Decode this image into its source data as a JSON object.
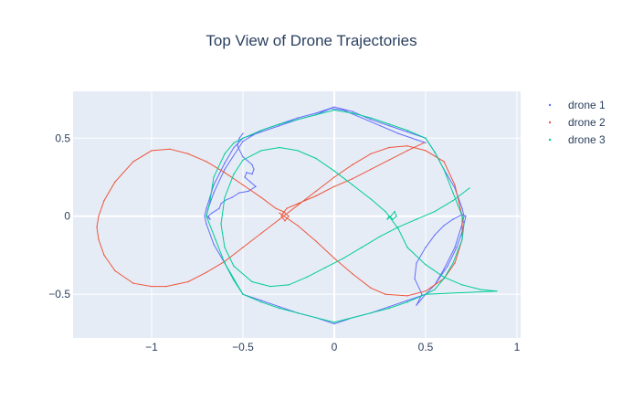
{
  "chart_data": {
    "type": "scatter",
    "title": "Top View of Drone Trajectories",
    "xlabel": "",
    "ylabel": "",
    "xlim": [
      -1.43,
      1.02
    ],
    "ylim": [
      -0.78,
      0.8
    ],
    "x_ticks": [
      -1,
      -0.5,
      0,
      0.5,
      1
    ],
    "x_tick_labels": [
      "−1",
      "−0.5",
      "0",
      "0.5",
      "1"
    ],
    "y_ticks": [
      -0.5,
      0,
      0.5
    ],
    "y_tick_labels": [
      "−0.5",
      "0",
      "0.5"
    ],
    "grid": true,
    "legend_position": "top-right",
    "series": [
      {
        "name": "drone 1",
        "color": "#636efa",
        "mode": "lines+markers",
        "x": [
          -0.5,
          -0.52,
          -0.53,
          -0.5,
          -0.45,
          -0.44,
          -0.45,
          -0.48,
          -0.49,
          -0.46,
          -0.43,
          -0.47,
          -0.52,
          -0.56,
          -0.6,
          -0.62,
          -0.63,
          -0.67,
          -0.69,
          -0.68,
          -0.7,
          -0.69,
          -0.66,
          -0.6,
          -0.5,
          -0.4,
          -0.3,
          -0.2,
          -0.1,
          0,
          0.1,
          0.2,
          0.3,
          0.4,
          0.5,
          0.55,
          0.6,
          0.66,
          0.7,
          0.71,
          0.7,
          0.66,
          0.6,
          0.55,
          0.5,
          0.45,
          0.48,
          0.44,
          0.45,
          0.5,
          0.55,
          0.6,
          0.65,
          0.7,
          0.72,
          0.7,
          0.67,
          0.62,
          0.55,
          0.5,
          0.4,
          0.3,
          0.2,
          0.1,
          0,
          -0.1,
          -0.2,
          -0.3,
          -0.4,
          -0.5,
          -0.55,
          -0.6,
          -0.66,
          -0.7,
          -0.71,
          -0.7,
          -0.66,
          -0.6,
          -0.55,
          -0.5,
          -0.4,
          -0.3,
          -0.2,
          -0.1,
          -0.02,
          0.05,
          0.15,
          0.25,
          0.35,
          0.45,
          0.5
        ],
        "y": [
          0.53,
          0.5,
          0.45,
          0.38,
          0.33,
          0.3,
          0.27,
          0.28,
          0.25,
          0.22,
          0.19,
          0.16,
          0.15,
          0.12,
          0.1,
          0.08,
          0.05,
          0.02,
          0.0,
          -0.02,
          0.0,
          0.05,
          0.15,
          0.3,
          0.48,
          0.55,
          0.59,
          0.63,
          0.66,
          0.7,
          0.67,
          0.62,
          0.58,
          0.54,
          0.5,
          0.41,
          0.3,
          0.18,
          0.05,
          0.0,
          -0.05,
          -0.2,
          -0.34,
          -0.44,
          -0.5,
          -0.57,
          -0.5,
          -0.4,
          -0.3,
          -0.2,
          -0.12,
          -0.06,
          -0.02,
          0.01,
          0.0,
          -0.1,
          -0.2,
          -0.32,
          -0.44,
          -0.5,
          -0.54,
          -0.58,
          -0.62,
          -0.65,
          -0.69,
          -0.65,
          -0.62,
          -0.58,
          -0.54,
          -0.5,
          -0.41,
          -0.3,
          -0.18,
          -0.05,
          0.0,
          0.05,
          0.2,
          0.34,
          0.44,
          0.5,
          0.54,
          0.58,
          0.62,
          0.65,
          0.69,
          0.68,
          0.63,
          0.58,
          0.53,
          0.49,
          0.47
        ]
      },
      {
        "name": "drone 2",
        "color": "#ef553b",
        "mode": "lines+markers",
        "x": [
          0.49,
          0.4,
          0.3,
          0.2,
          0.1,
          0,
          -0.1,
          -0.2,
          -0.26,
          -0.28,
          -0.29,
          -0.27,
          -0.25,
          -0.28,
          -0.32,
          -0.4,
          -0.5,
          -0.6,
          -0.7,
          -0.8,
          -0.9,
          -1.0,
          -1.1,
          -1.2,
          -1.26,
          -1.29,
          -1.3,
          -1.29,
          -1.26,
          -1.2,
          -1.1,
          -1.0,
          -0.92,
          -0.8,
          -0.7,
          -0.6,
          -0.5,
          -0.4,
          -0.3,
          -0.2,
          -0.1,
          0.0,
          0.1,
          0.2,
          0.3,
          0.4,
          0.5,
          0.6,
          0.66,
          0.7,
          0.7,
          0.66,
          0.6,
          0.5,
          0.4,
          0.28,
          0.2,
          0.1,
          0.0,
          -0.1,
          -0.2,
          -0.3
        ],
        "y": [
          0.47,
          0.42,
          0.36,
          0.3,
          0.24,
          0.19,
          0.13,
          0.08,
          0.05,
          0.02,
          0.0,
          -0.03,
          0.0,
          0.03,
          0.05,
          0.12,
          0.2,
          0.28,
          0.35,
          0.4,
          0.43,
          0.42,
          0.35,
          0.22,
          0.1,
          0.0,
          -0.07,
          -0.15,
          -0.25,
          -0.35,
          -0.43,
          -0.45,
          -0.45,
          -0.42,
          -0.36,
          -0.29,
          -0.2,
          -0.11,
          -0.02,
          0.07,
          0.16,
          0.25,
          0.33,
          0.4,
          0.44,
          0.45,
          0.42,
          0.35,
          0.2,
          0.0,
          -0.15,
          -0.3,
          -0.4,
          -0.48,
          -0.51,
          -0.5,
          -0.46,
          -0.37,
          -0.27,
          -0.16,
          -0.06,
          0.02
        ]
      },
      {
        "name": "drone 3",
        "color": "#00cc96",
        "mode": "lines+markers",
        "x": [
          0.74,
          0.65,
          0.55,
          0.45,
          0.35,
          0.25,
          0.15,
          0.05,
          -0.05,
          -0.15,
          -0.25,
          -0.35,
          -0.45,
          -0.55,
          -0.6,
          -0.62,
          -0.6,
          -0.55,
          -0.5,
          -0.4,
          -0.3,
          -0.2,
          -0.1,
          0.0,
          0.1,
          0.2,
          0.28,
          0.3,
          0.29,
          0.31,
          0.33,
          0.34,
          0.32,
          0.3,
          0.35,
          0.4,
          0.5,
          0.6,
          0.7,
          0.8,
          0.89,
          0.5,
          0.4,
          0.3,
          0.2,
          0.0,
          -0.1,
          -0.2,
          -0.3,
          -0.4,
          -0.5,
          -0.55,
          -0.6,
          -0.65,
          -0.7,
          -0.68,
          -0.66,
          -0.6,
          -0.55,
          -0.5,
          -0.4,
          -0.3,
          -0.2,
          -0.1,
          0.0,
          0.1,
          0.2,
          0.3,
          0.4,
          0.5,
          0.55,
          0.6,
          0.65,
          0.7,
          0.71,
          0.7,
          0.65,
          0.6,
          0.55,
          0.5,
          0.4,
          0.3,
          0.2,
          0.1,
          0.0,
          -0.1,
          -0.2,
          -0.3,
          -0.4,
          -0.5,
          -0.6,
          -0.7
        ],
        "y": [
          0.18,
          0.1,
          0.03,
          -0.02,
          -0.07,
          -0.13,
          -0.2,
          -0.27,
          -0.33,
          -0.39,
          -0.44,
          -0.45,
          -0.42,
          -0.32,
          -0.2,
          -0.05,
          0.12,
          0.27,
          0.36,
          0.42,
          0.44,
          0.42,
          0.37,
          0.29,
          0.2,
          0.11,
          0.03,
          0.0,
          -0.02,
          0.0,
          0.03,
          0.0,
          -0.02,
          0.0,
          -0.08,
          -0.2,
          -0.31,
          -0.39,
          -0.44,
          -0.47,
          -0.48,
          -0.5,
          -0.55,
          -0.59,
          -0.62,
          -0.68,
          -0.65,
          -0.62,
          -0.59,
          -0.55,
          -0.5,
          -0.41,
          -0.3,
          -0.15,
          0.0,
          0.1,
          0.25,
          0.4,
          0.47,
          0.5,
          0.55,
          0.59,
          0.62,
          0.65,
          0.68,
          0.66,
          0.63,
          0.59,
          0.55,
          0.5,
          0.41,
          0.3,
          0.15,
          0.0,
          -0.05,
          -0.15,
          -0.3,
          -0.4,
          -0.47,
          -0.5,
          -0.55,
          -0.59,
          -0.62,
          -0.65,
          -0.68,
          -0.65,
          -0.62,
          -0.59,
          -0.55,
          -0.5,
          -0.3,
          0.0
        ]
      }
    ]
  }
}
